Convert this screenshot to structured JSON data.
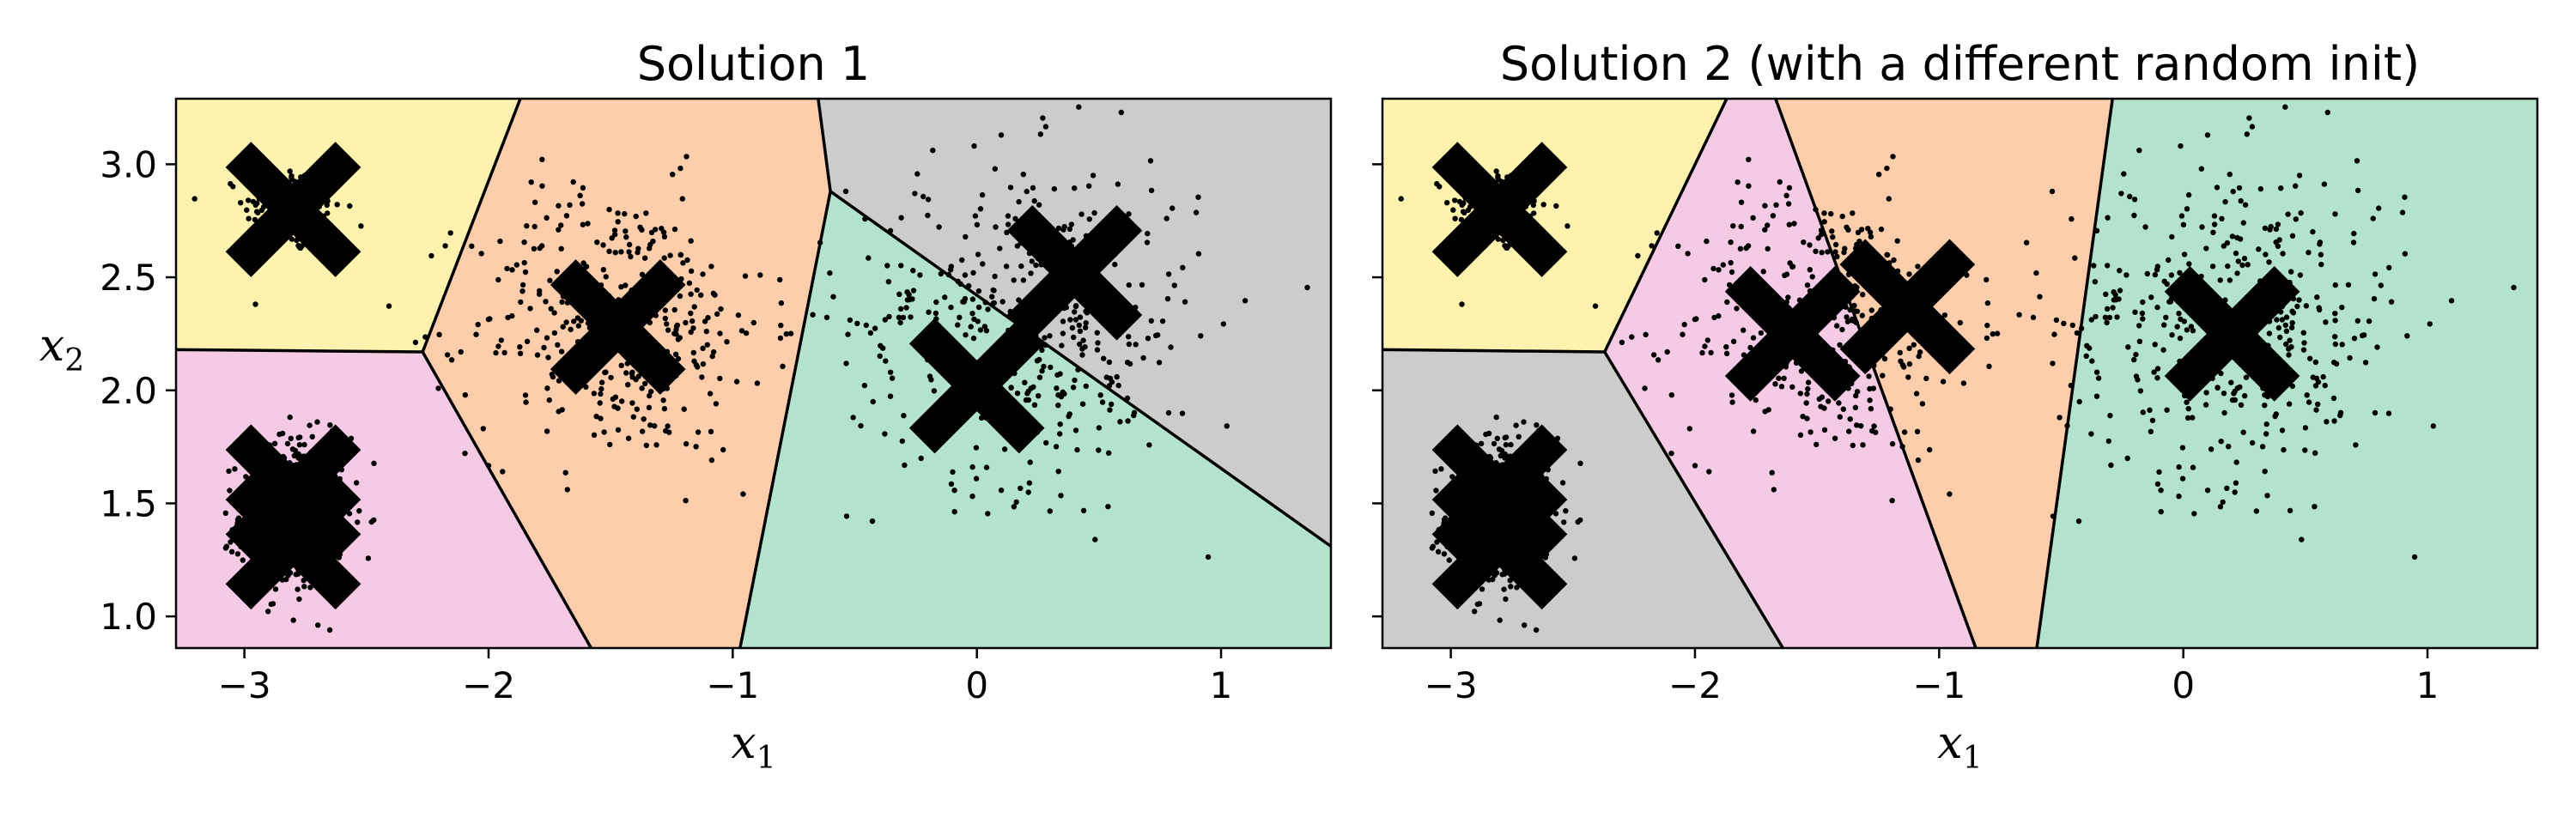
{
  "chart_data": [
    {
      "type": "scatter",
      "title": "Solution 1",
      "xlabel": "x",
      "xlabel_sub": "1",
      "ylabel": "x",
      "ylabel_sub": "2",
      "xlim": [
        -3.28,
        1.45
      ],
      "ylim": [
        0.86,
        3.29
      ],
      "xticks": [
        -3,
        -2,
        -1,
        0,
        1
      ],
      "xtick_labels": [
        "−3",
        "−2",
        "−1",
        "0",
        "1"
      ],
      "yticks": [
        1.0,
        1.5,
        2.0,
        2.5,
        3.0
      ],
      "ytick_labels": [
        "1.0",
        "1.5",
        "2.0",
        "2.5",
        "3.0"
      ],
      "regions": [
        {
          "color": "#fff2ae",
          "polygon": [
            [
              -3.28,
              3.29
            ],
            [
              -1.87,
              3.29
            ],
            [
              -2.27,
              2.17
            ],
            [
              -3.28,
              2.18
            ]
          ]
        },
        {
          "color": "#f4cae4",
          "polygon": [
            [
              -3.28,
              2.18
            ],
            [
              -2.27,
              2.17
            ],
            [
              -1.58,
              0.86
            ],
            [
              -3.28,
              0.86
            ]
          ]
        },
        {
          "color": "#fdcdac",
          "polygon": [
            [
              -1.87,
              3.29
            ],
            [
              -0.65,
              3.29
            ],
            [
              -0.6,
              2.88
            ],
            [
              -0.97,
              0.86
            ],
            [
              -1.58,
              0.86
            ],
            [
              -2.27,
              2.17
            ]
          ]
        },
        {
          "color": "#cccccc",
          "polygon": [
            [
              -0.65,
              3.29
            ],
            [
              1.45,
              3.29
            ],
            [
              1.45,
              1.31
            ],
            [
              -0.6,
              2.88
            ]
          ]
        },
        {
          "color": "#b3e2cd",
          "polygon": [
            [
              -0.6,
              2.88
            ],
            [
              1.45,
              1.31
            ],
            [
              1.45,
              0.86
            ],
            [
              -0.97,
              0.86
            ]
          ]
        }
      ],
      "boundaries": [
        [
          [
            -3.28,
            2.18
          ],
          [
            -2.27,
            2.17
          ],
          [
            -1.87,
            3.29
          ]
        ],
        [
          [
            -2.27,
            2.17
          ],
          [
            -1.58,
            0.86
          ]
        ],
        [
          [
            -0.65,
            3.29
          ],
          [
            -0.6,
            2.88
          ],
          [
            -0.97,
            0.86
          ]
        ],
        [
          [
            -0.6,
            2.88
          ],
          [
            1.45,
            1.31
          ]
        ]
      ],
      "centroids": [
        [
          -2.8,
          2.8
        ],
        [
          -2.8,
          1.55
        ],
        [
          -2.8,
          1.33
        ],
        [
          -1.47,
          2.28
        ],
        [
          0.0,
          2.02
        ],
        [
          0.4,
          2.52
        ]
      ]
    },
    {
      "type": "scatter",
      "title": "Solution 2 (with a different random init)",
      "xlabel": "x",
      "xlabel_sub": "1",
      "xlim": [
        -3.28,
        1.45
      ],
      "ylim": [
        0.86,
        3.29
      ],
      "xticks": [
        -3,
        -2,
        -1,
        0,
        1
      ],
      "xtick_labels": [
        "−3",
        "−2",
        "−1",
        "0",
        "1"
      ],
      "yticks": [
        1.0,
        1.5,
        2.0,
        2.5,
        3.0
      ],
      "regions": [
        {
          "color": "#fff2ae",
          "polygon": [
            [
              -3.28,
              3.29
            ],
            [
              -1.87,
              3.29
            ],
            [
              -2.37,
              2.17
            ],
            [
              -3.28,
              2.18
            ]
          ]
        },
        {
          "color": "#cccccc",
          "polygon": [
            [
              -3.28,
              2.18
            ],
            [
              -2.37,
              2.17
            ],
            [
              -1.64,
              0.86
            ],
            [
              -3.28,
              0.86
            ]
          ]
        },
        {
          "color": "#f4cae4",
          "polygon": [
            [
              -1.87,
              3.29
            ],
            [
              -1.67,
              3.29
            ],
            [
              -0.85,
              0.86
            ],
            [
              -1.64,
              0.86
            ],
            [
              -2.37,
              2.17
            ]
          ]
        },
        {
          "color": "#fdcdac",
          "polygon": [
            [
              -1.67,
              3.29
            ],
            [
              -0.29,
              3.29
            ],
            [
              -0.6,
              0.86
            ],
            [
              -0.85,
              0.86
            ]
          ]
        },
        {
          "color": "#b3e2cd",
          "polygon": [
            [
              -0.29,
              3.29
            ],
            [
              1.45,
              3.29
            ],
            [
              1.45,
              0.86
            ],
            [
              -0.6,
              0.86
            ]
          ]
        }
      ],
      "boundaries": [
        [
          [
            -3.28,
            2.18
          ],
          [
            -2.37,
            2.17
          ],
          [
            -1.87,
            3.29
          ]
        ],
        [
          [
            -2.37,
            2.17
          ],
          [
            -1.64,
            0.86
          ]
        ],
        [
          [
            -1.67,
            3.29
          ],
          [
            -0.85,
            0.86
          ]
        ],
        [
          [
            -0.29,
            3.29
          ],
          [
            -0.6,
            0.86
          ]
        ]
      ],
      "centroids": [
        [
          -2.8,
          2.8
        ],
        [
          -2.8,
          1.55
        ],
        [
          -2.8,
          1.33
        ],
        [
          -1.6,
          2.25
        ],
        [
          -1.13,
          2.37
        ],
        [
          0.2,
          2.25
        ]
      ]
    }
  ],
  "points": {
    "clusters": [
      {
        "center": [
          -2.8,
          2.8
        ],
        "sd": [
          0.1,
          0.1
        ],
        "count": 200
      },
      {
        "center": [
          -2.8,
          1.45
        ],
        "sd": [
          0.11,
          0.17
        ],
        "count": 500
      },
      {
        "center": [
          -1.47,
          2.3
        ],
        "sd": [
          0.3,
          0.3
        ],
        "count": 380
      },
      {
        "center": [
          0.2,
          2.3
        ],
        "sd": [
          0.36,
          0.36
        ],
        "count": 420
      }
    ],
    "color": "#000000"
  }
}
